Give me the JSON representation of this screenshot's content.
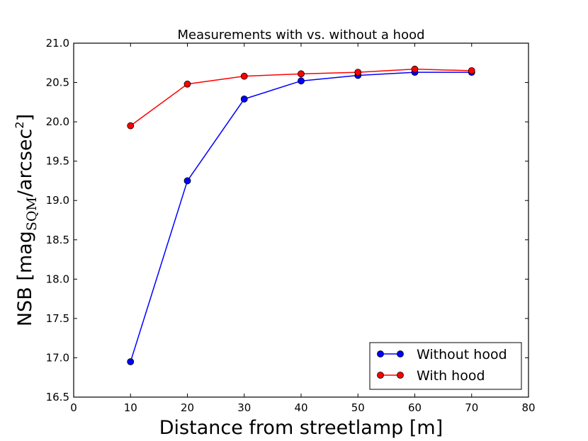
{
  "chart_data": {
    "type": "line",
    "title": "Measurements with vs. without a hood",
    "xlabel": "Distance from streetlamp [m]",
    "ylabel": {
      "prefix": "NSB [mag",
      "subscript": "SQM",
      "middle": "/arcsec",
      "superscript": "2",
      "suffix": "]"
    },
    "xlim": [
      0,
      80
    ],
    "ylim": [
      16.5,
      21.0
    ],
    "xticks": [
      0,
      10,
      20,
      30,
      40,
      50,
      60,
      70,
      80
    ],
    "yticks": [
      16.5,
      17.0,
      17.5,
      18.0,
      18.5,
      19.0,
      19.5,
      20.0,
      20.5,
      21.0
    ],
    "ytick_labels": [
      "16.5",
      "17.0",
      "17.5",
      "18.0",
      "18.5",
      "19.0",
      "19.5",
      "20.0",
      "20.5",
      "21.0"
    ],
    "grid": false,
    "legend_position": "lower-right",
    "series": [
      {
        "name": "Without hood",
        "color": "#0000ff",
        "x": [
          10,
          20,
          30,
          40,
          50,
          60,
          70
        ],
        "y": [
          16.95,
          19.25,
          20.29,
          20.52,
          20.59,
          20.63,
          20.63
        ]
      },
      {
        "name": "With hood",
        "color": "#ff0000",
        "x": [
          10,
          20,
          30,
          40,
          50,
          60,
          70
        ],
        "y": [
          19.95,
          20.48,
          20.58,
          20.61,
          20.63,
          20.67,
          20.65
        ]
      }
    ]
  }
}
